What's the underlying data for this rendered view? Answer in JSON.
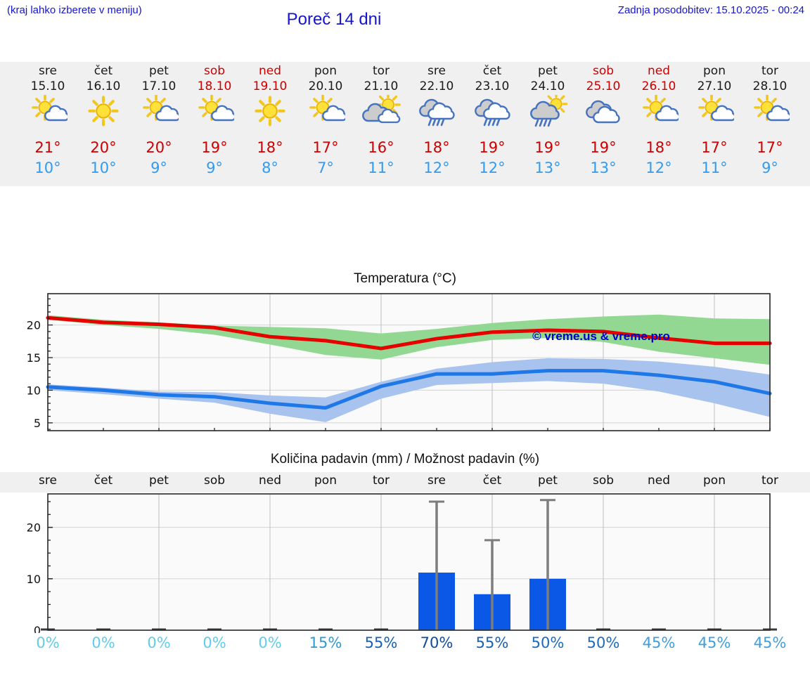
{
  "header": {
    "hint": "(kraj lahko izberete v meniju)",
    "title": "Poreč 14 dni",
    "updated": "Zadnja posodobitev: 15.10.2025 - 00:24"
  },
  "watermark": "© vreme.us & vreme.pro",
  "colors": {
    "header_text": "#1515d0",
    "weekend": "#cc0000",
    "high_temp": "#cc0000",
    "low_temp": "#2f9bf2",
    "strip_bg": "#f0f0f0",
    "plot_bg": "#fafafa",
    "grid": "#d8d8d8",
    "axis": "#262626",
    "temp_max_line": "#e60000",
    "temp_min_line": "#1e78e8",
    "temp_max_band": "#92d892",
    "temp_min_band": "#a9c3ef",
    "rain_bar": "#0b57e6",
    "whisker": "#7d7d7d",
    "zero_dash": "#3a3a3a"
  },
  "days": [
    {
      "name": "sre",
      "date": "15.10",
      "weekend": false,
      "icon": "sun-cloud",
      "high": "21°",
      "low": "10°",
      "prob": "0%",
      "prob_color": "#5fccea"
    },
    {
      "name": "čet",
      "date": "16.10",
      "weekend": false,
      "icon": "sun",
      "high": "20°",
      "low": "10°",
      "prob": "0%",
      "prob_color": "#5fccea"
    },
    {
      "name": "pet",
      "date": "17.10",
      "weekend": false,
      "icon": "sun-cloud",
      "high": "20°",
      "low": "9°",
      "prob": "0%",
      "prob_color": "#5fccea"
    },
    {
      "name": "sob",
      "date": "18.10",
      "weekend": true,
      "icon": "sun-cloud",
      "high": "19°",
      "low": "9°",
      "prob": "0%",
      "prob_color": "#5fccea"
    },
    {
      "name": "ned",
      "date": "19.10",
      "weekend": true,
      "icon": "sun",
      "high": "18°",
      "low": "8°",
      "prob": "0%",
      "prob_color": "#5fccea"
    },
    {
      "name": "pon",
      "date": "20.10",
      "weekend": false,
      "icon": "sun-cloud",
      "high": "17°",
      "low": "7°",
      "prob": "15%",
      "prob_color": "#2f9ad2"
    },
    {
      "name": "tor",
      "date": "21.10",
      "weekend": false,
      "icon": "mostly-cloudy",
      "high": "16°",
      "low": "11°",
      "prob": "55%",
      "prob_color": "#1760b2"
    },
    {
      "name": "sre",
      "date": "22.10",
      "weekend": false,
      "icon": "rain",
      "high": "18°",
      "low": "12°",
      "prob": "70%",
      "prob_color": "#0e4c9c"
    },
    {
      "name": "čet",
      "date": "23.10",
      "weekend": false,
      "icon": "rain",
      "high": "19°",
      "low": "12°",
      "prob": "55%",
      "prob_color": "#1760b2"
    },
    {
      "name": "pet",
      "date": "24.10",
      "weekend": false,
      "icon": "sun-rain",
      "high": "19°",
      "low": "13°",
      "prob": "50%",
      "prob_color": "#1b6cbe"
    },
    {
      "name": "sob",
      "date": "25.10",
      "weekend": true,
      "icon": "cloudy",
      "high": "19°",
      "low": "13°",
      "prob": "50%",
      "prob_color": "#1b6cbe"
    },
    {
      "name": "ned",
      "date": "26.10",
      "weekend": true,
      "icon": "sun-cloud",
      "high": "18°",
      "low": "12°",
      "prob": "45%",
      "prob_color": "#3e9fdc"
    },
    {
      "name": "pon",
      "date": "27.10",
      "weekend": false,
      "icon": "sun-cloud",
      "high": "17°",
      "low": "11°",
      "prob": "45%",
      "prob_color": "#3e9fdc"
    },
    {
      "name": "tor",
      "date": "28.10",
      "weekend": false,
      "icon": "sun-cloud",
      "high": "17°",
      "low": "9°",
      "prob": "45%",
      "prob_color": "#3e9fdc"
    }
  ],
  "chart_data": [
    {
      "type": "line",
      "title": "Temperatura (°C)",
      "x_labels": [
        "15.10",
        "16.10",
        "17.10",
        "18.10",
        "19.10",
        "20.10",
        "21.10",
        "22.10",
        "23.10",
        "24.10",
        "25.10",
        "26.10",
        "27.10",
        "28.10"
      ],
      "ylim": [
        3.8,
        24.8
      ],
      "yticks": [
        5,
        10,
        15,
        20
      ],
      "grid": "on",
      "annotation": "© vreme.us & vreme.pro",
      "series": [
        {
          "name": "max temperature",
          "color": "#e60000",
          "values": [
            21.1,
            20.4,
            20.1,
            19.6,
            18.2,
            17.6,
            16.4,
            17.9,
            18.9,
            19.2,
            19.0,
            18.0,
            17.2,
            17.2
          ]
        },
        {
          "name": "min temperature",
          "color": "#1e78e8",
          "values": [
            10.5,
            10.0,
            9.3,
            9.0,
            8.0,
            7.3,
            10.6,
            12.5,
            12.5,
            13.0,
            13.0,
            12.3,
            11.3,
            9.5
          ]
        },
        {
          "name": "max band upper",
          "color": "#92d892",
          "values": [
            21.5,
            20.8,
            20.4,
            19.9,
            19.7,
            19.5,
            18.7,
            19.4,
            20.3,
            20.9,
            21.3,
            21.6,
            21.0,
            20.9
          ]
        },
        {
          "name": "max band lower",
          "color": "#92d892",
          "values": [
            20.8,
            20.0,
            19.4,
            18.5,
            17.0,
            15.4,
            14.7,
            16.6,
            17.7,
            18.0,
            17.4,
            15.9,
            14.9,
            13.9
          ]
        },
        {
          "name": "min band upper",
          "color": "#a9c3ef",
          "values": [
            10.9,
            10.4,
            9.8,
            9.7,
            9.2,
            8.9,
            11.3,
            13.3,
            14.3,
            14.9,
            14.8,
            14.4,
            13.6,
            12.4
          ]
        },
        {
          "name": "min band lower",
          "color": "#a9c3ef",
          "values": [
            10.0,
            9.4,
            8.7,
            8.1,
            6.4,
            5.1,
            8.7,
            10.8,
            11.1,
            11.4,
            11.0,
            9.8,
            8.0,
            5.9
          ]
        }
      ]
    },
    {
      "type": "bar",
      "title": "Količina padavin (mm) / Možnost padavin (%)",
      "categories": [
        "sre",
        "čet",
        "pet",
        "sob",
        "ned",
        "pon",
        "tor",
        "sre",
        "čet",
        "pet",
        "sob",
        "ned",
        "pon",
        "tor"
      ],
      "values": [
        0,
        0,
        0,
        0,
        0,
        0,
        0,
        11.2,
        7,
        10,
        0,
        0,
        0,
        0
      ],
      "max_values": [
        null,
        null,
        null,
        null,
        null,
        null,
        null,
        25,
        17.5,
        25.3,
        null,
        null,
        null,
        null
      ],
      "probabilities_pct": [
        0,
        0,
        0,
        0,
        0,
        15,
        55,
        70,
        55,
        50,
        50,
        45,
        45,
        45
      ],
      "ylim": [
        0,
        26.5
      ],
      "yticks": [
        0,
        10,
        20
      ],
      "grid": "on"
    }
  ]
}
